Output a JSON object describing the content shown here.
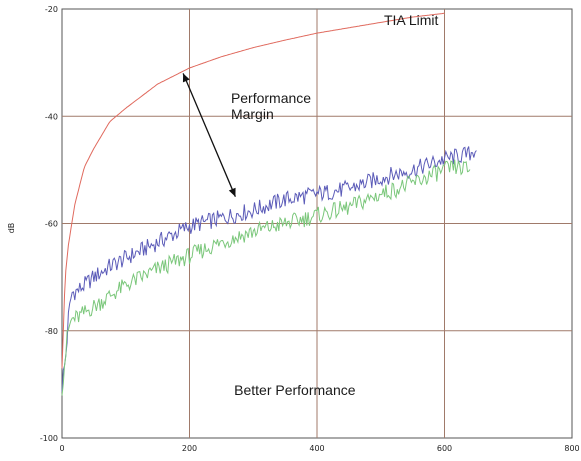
{
  "chart_data": {
    "type": "line",
    "title": "",
    "xlabel": "",
    "ylabel": "dB",
    "xlim": [
      0,
      800
    ],
    "ylim": [
      -100,
      -20
    ],
    "x_ticks": [
      "0",
      "200",
      "400",
      "600",
      "800"
    ],
    "y_ticks": [
      "-20",
      "-40",
      "-60",
      "-80",
      "-100"
    ],
    "y_tick_values": [
      -20,
      -40,
      -60,
      -80,
      -100
    ],
    "x_tick_values": [
      0,
      200,
      400,
      600,
      800
    ],
    "grid": true,
    "series": [
      {
        "name": "TIA Limit",
        "color": "#e06a5e",
        "x": [
          0,
          5,
          10,
          20,
          35,
          50,
          75,
          100,
          150,
          200,
          250,
          300,
          350,
          400,
          450,
          500,
          550,
          600
        ],
        "y": [
          -87,
          -70,
          -64,
          -56.5,
          -49.5,
          -46,
          -41,
          -38.5,
          -34,
          -31,
          -28.9,
          -27.2,
          -25.8,
          -24.5,
          -23.5,
          -22.5,
          -21.5,
          -20.8
        ]
      },
      {
        "name": "",
        "color": "#5b5bb8",
        "x": [
          0,
          5,
          10,
          15,
          25,
          50,
          75,
          100,
          150,
          200,
          250,
          300,
          350,
          400,
          450,
          500,
          550,
          600,
          620,
          640,
          650
        ],
        "y": [
          -90,
          -86,
          -78,
          -73,
          -72.5,
          -70,
          -68,
          -66.5,
          -63.5,
          -60.5,
          -59,
          -57.5,
          -55.5,
          -54.5,
          -53.5,
          -51.5,
          -50,
          -48,
          -47.5,
          -47,
          -46
        ]
      },
      {
        "name": "",
        "color": "#7bc77b",
        "x": [
          0,
          5,
          10,
          15,
          25,
          50,
          75,
          100,
          150,
          200,
          250,
          300,
          350,
          400,
          450,
          500,
          550,
          600,
          620,
          640
        ],
        "y": [
          -90,
          -85,
          -80,
          -78,
          -77.5,
          -75.5,
          -73.5,
          -71.5,
          -68.5,
          -66,
          -63.5,
          -61.5,
          -60,
          -58.5,
          -57,
          -54.5,
          -52.5,
          -50,
          -49.5,
          -50
        ]
      }
    ],
    "annotations": [
      {
        "text": "TIA Limit",
        "x": 505,
        "y": -23
      },
      {
        "text": "Performance",
        "x": 265,
        "y": -37.5
      },
      {
        "text": "Margin",
        "x": 265,
        "y": -40.5
      },
      {
        "text": "Better Performance",
        "x": 270,
        "y": -92
      }
    ],
    "arrow": {
      "from": [
        190,
        -32
      ],
      "to": [
        272,
        -55
      ]
    }
  }
}
